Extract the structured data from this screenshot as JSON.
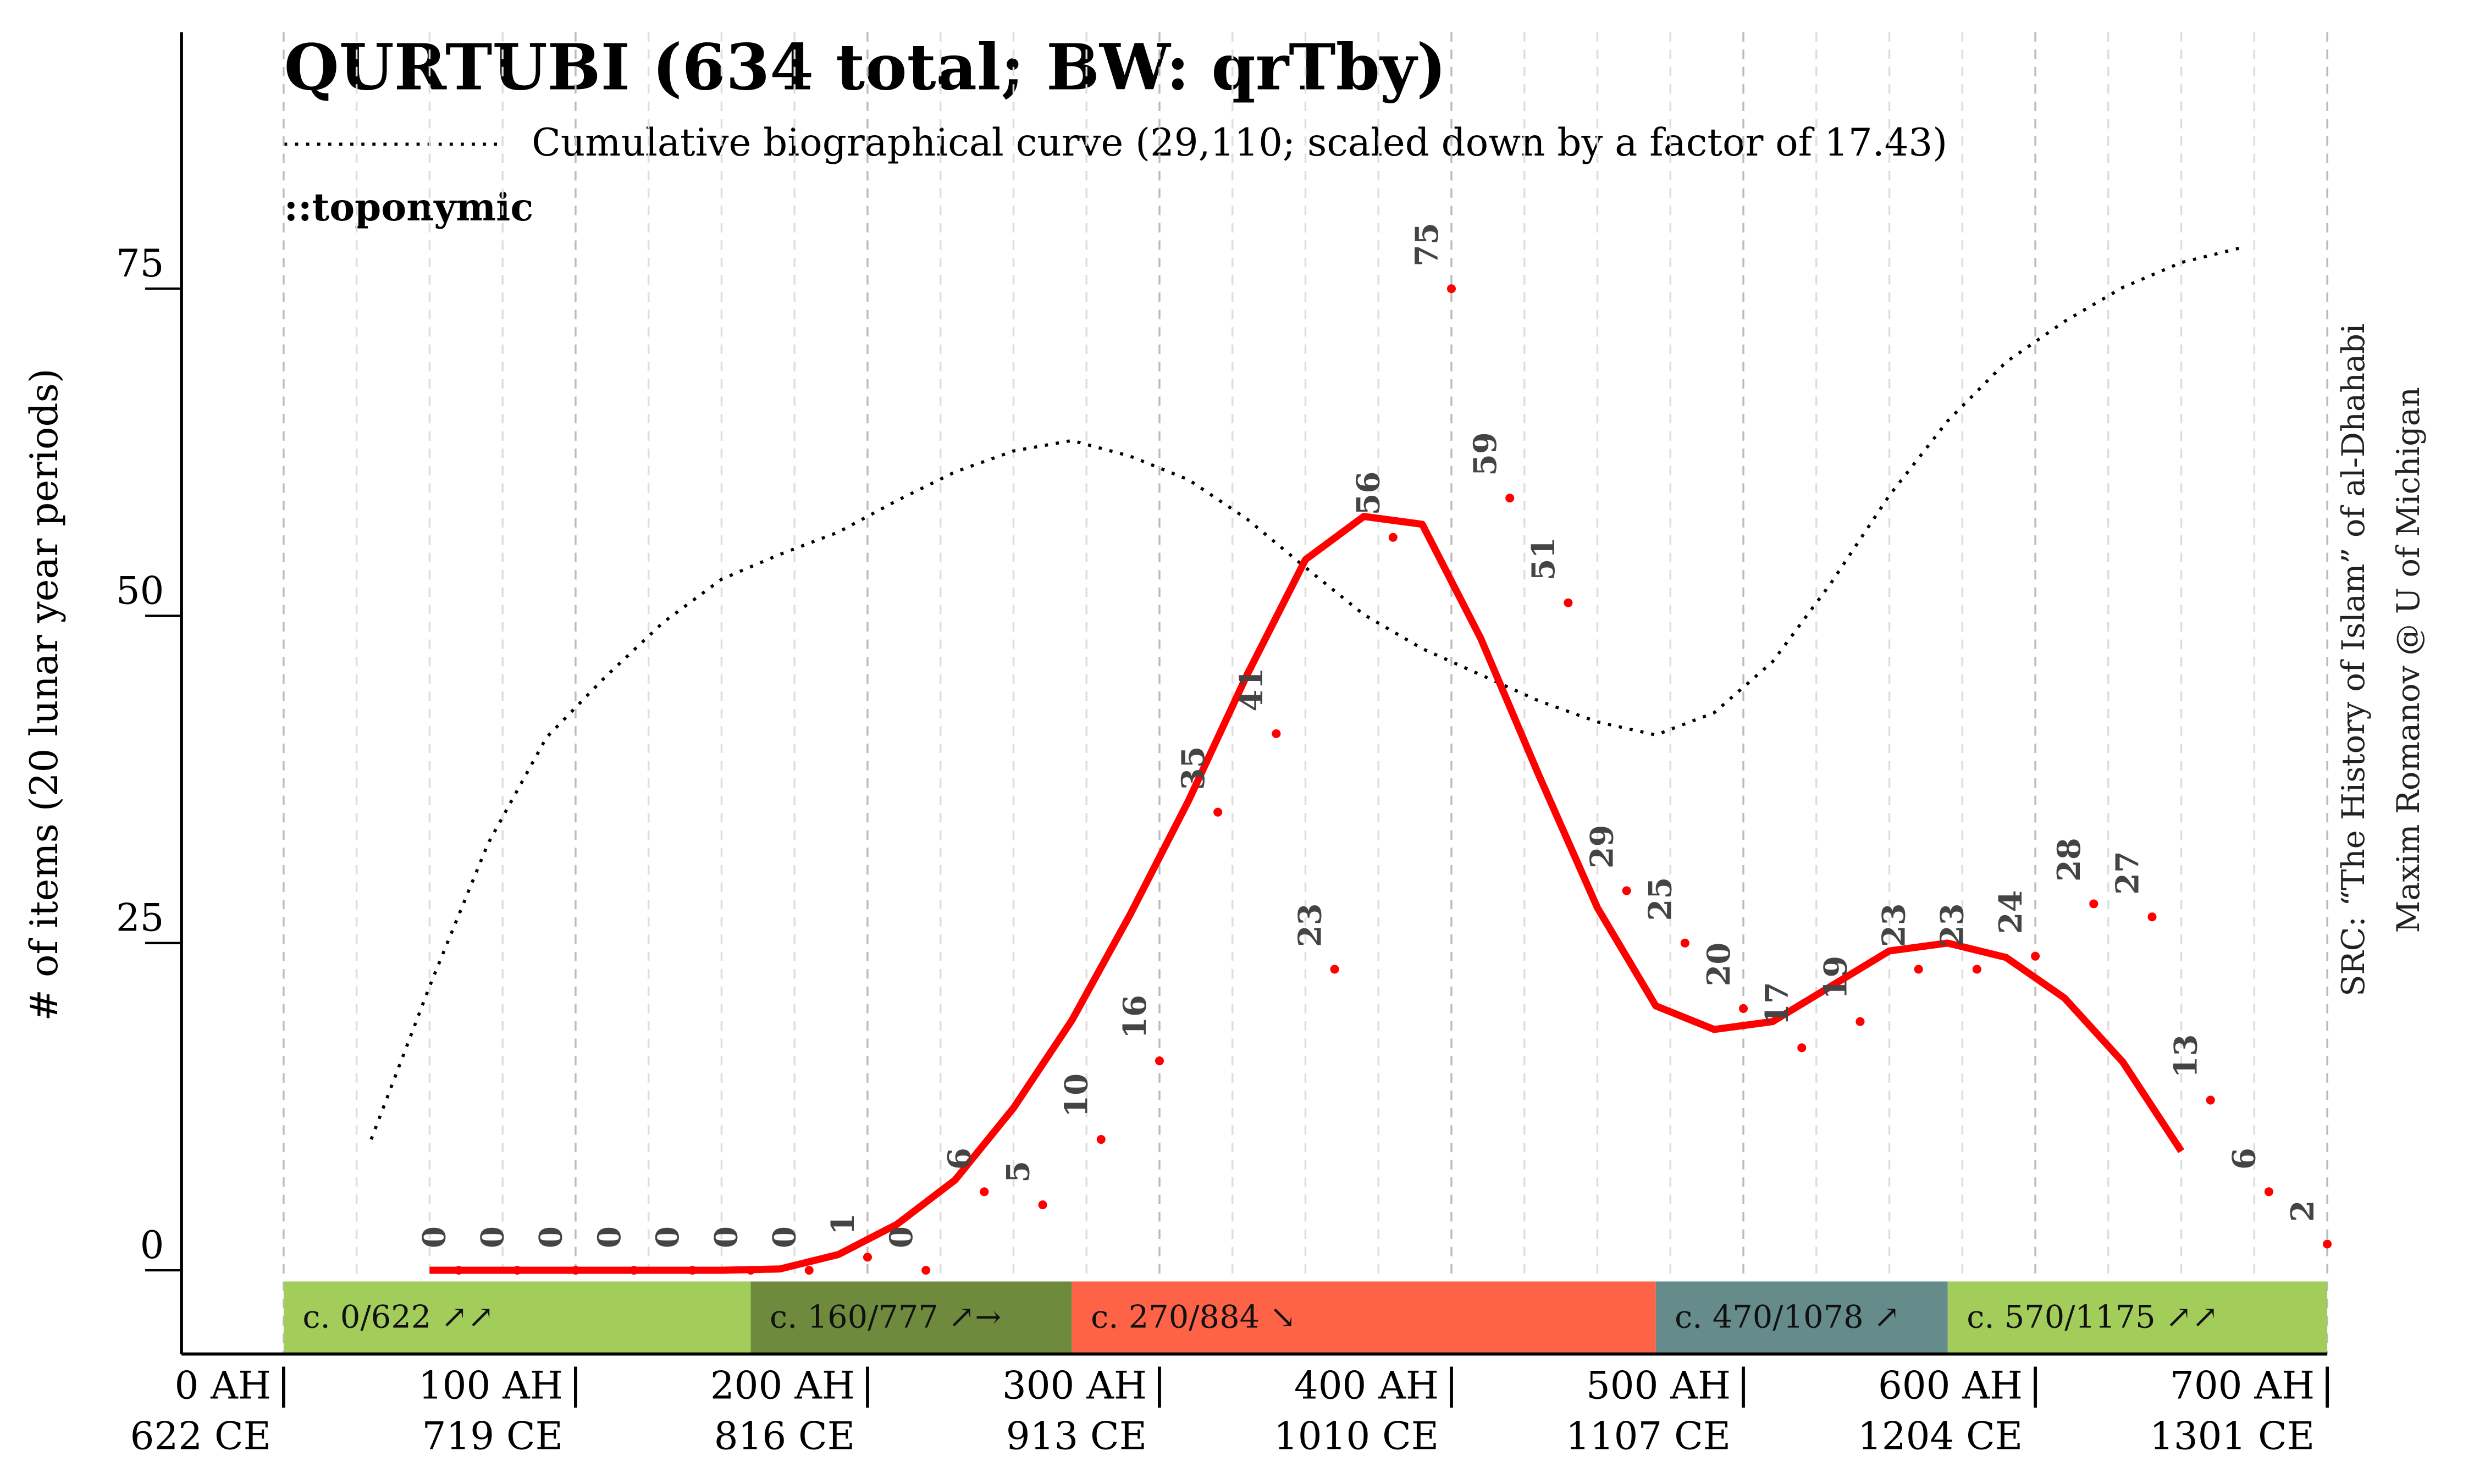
{
  "chart_data": {
    "type": "scatter",
    "title": "QURTUBI (634 total; BW: qrTby)",
    "annotation": "::toponymic",
    "y_label": "# of items (20 lunar year periods)",
    "source": [
      "SRC: “The History of Islam” of al-Dhahabi",
      "Maxim Romanov @ U of Michigan"
    ],
    "xlim": [
      -35,
      700
    ],
    "ylim": [
      -6.4,
      94.6
    ],
    "yticks": [
      0,
      25,
      50,
      75
    ],
    "xticks": [
      {
        "value": 0,
        "label": "0 AH",
        "label_ce": "622 CE"
      },
      {
        "value": 100,
        "label": "100 AH",
        "label_ce": "719 CE"
      },
      {
        "value": 200,
        "label": "200 AH",
        "label_ce": "816 CE"
      },
      {
        "value": 300,
        "label": "300 AH",
        "label_ce": "913 CE"
      },
      {
        "value": 400,
        "label": "400 AH",
        "label_ce": "1010 CE"
      },
      {
        "value": 500,
        "label": "500 AH",
        "label_ce": "1107 CE"
      },
      {
        "value": 600,
        "label": "600 AH",
        "label_ce": "1204 CE"
      },
      {
        "value": 700,
        "label": "700 AH",
        "label_ce": "1301 CE"
      }
    ],
    "xgrid": [
      0,
      25,
      50,
      75,
      100,
      125,
      150,
      175,
      200,
      225,
      250,
      275,
      300,
      325,
      350,
      375,
      400,
      425,
      450,
      475,
      500,
      525,
      550,
      575,
      600,
      625,
      650,
      675,
      700
    ],
    "grid": true,
    "points": {
      "color": "#ff0000",
      "x": [
        60,
        80,
        100,
        120,
        140,
        160,
        180,
        200,
        220,
        240,
        260,
        280,
        300,
        320,
        340,
        360,
        380,
        400,
        420,
        440,
        460,
        480,
        500,
        520,
        540,
        560,
        580,
        600,
        620,
        640,
        660,
        680,
        700
      ],
      "values": [
        0,
        0,
        0,
        0,
        0,
        0,
        0,
        1,
        0,
        6,
        5,
        10,
        16,
        35,
        41,
        23,
        56,
        75,
        59,
        51,
        29,
        25,
        20,
        17,
        19,
        23,
        23,
        24,
        28,
        27,
        13,
        6,
        2
      ]
    },
    "trend": {
      "color": "#ff0000",
      "x": [
        50,
        70,
        90,
        110,
        130,
        150,
        170,
        190,
        210,
        230,
        250,
        270,
        290,
        310,
        330,
        350,
        370,
        390,
        410,
        430,
        450,
        470,
        490,
        510,
        530,
        550,
        570,
        590,
        610,
        630,
        650
      ],
      "values": [
        0,
        0,
        0,
        0,
        0,
        0,
        0.1,
        1.2,
        3.5,
        6.9,
        12.4,
        19.1,
        27.2,
        35.9,
        45.5,
        54.3,
        57.6,
        57,
        48.3,
        37.8,
        27.7,
        20.2,
        18.4,
        19,
        21.7,
        24.4,
        25,
        23.9,
        20.8,
        15.9,
        9.1
      ]
    },
    "series": [
      {
        "name": "Cumulative biographical curve (29,110; scaled down by a factor of 17.43)",
        "color": "#000000",
        "x": [
          30,
          50,
          70,
          90,
          110,
          130,
          150,
          170,
          190,
          210,
          230,
          250,
          270,
          290,
          310,
          330,
          350,
          370,
          390,
          410,
          430,
          450,
          470,
          490,
          510,
          530,
          550,
          570,
          590,
          610,
          630,
          650,
          670
        ],
        "values": [
          10,
          21.7,
          32.6,
          40.7,
          45.3,
          49.5,
          52.8,
          54.7,
          56.4,
          58.8,
          61,
          62.6,
          63.4,
          62.2,
          60.4,
          57.4,
          53.7,
          50.1,
          47.5,
          45.5,
          43.5,
          41.9,
          40.9,
          42.6,
          46.5,
          52.5,
          59.2,
          64.9,
          69.4,
          72.5,
          75.1,
          77,
          78.1
        ]
      }
    ],
    "periods": [
      {
        "start": 0,
        "end": 160,
        "label": "c. 0/622 ↗↗",
        "color": "#a2cd5a"
      },
      {
        "start": 160,
        "end": 270,
        "label": "c. 160/777 ↗→",
        "color": "#6e8b3d"
      },
      {
        "start": 270,
        "end": 470,
        "label": "c. 270/884 ↘",
        "color": "#ff6347"
      },
      {
        "start": 470,
        "end": 570,
        "label": "c. 470/1078 ↗",
        "color": "#668b8b"
      },
      {
        "start": 570,
        "end": 700,
        "label": "c. 570/1175 ↗↗",
        "color": "#a2cd5a"
      }
    ]
  }
}
